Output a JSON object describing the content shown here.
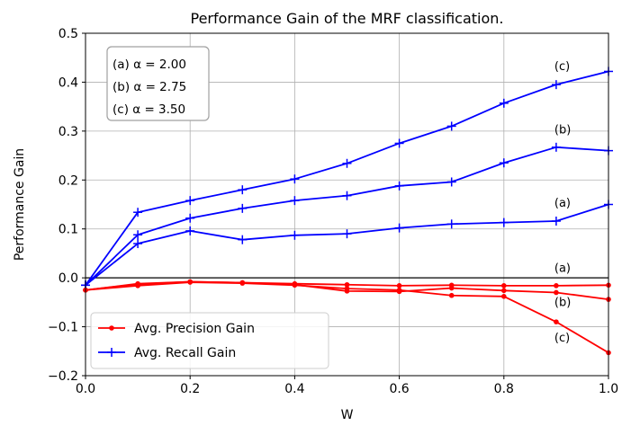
{
  "chart_data": {
    "type": "line",
    "title": "Performance Gain of the MRF classification.",
    "xlabel": "W",
    "ylabel": "Performance Gain",
    "xlim": [
      0.0,
      1.0
    ],
    "ylim": [
      -0.2,
      0.5
    ],
    "xticks": [
      "0.0",
      "0.2",
      "0.4",
      "0.6",
      "0.8",
      "1.0"
    ],
    "yticks": [
      "−0.2",
      "−0.1",
      "0.0",
      "0.1",
      "0.2",
      "0.3",
      "0.4",
      "0.5"
    ],
    "xtick_values": [
      0.0,
      0.2,
      0.4,
      0.6,
      0.8,
      1.0
    ],
    "ytick_values": [
      -0.2,
      -0.1,
      0.0,
      0.1,
      0.2,
      0.3,
      0.4,
      0.5
    ],
    "grid": true,
    "zero_line": 0.0,
    "legend_position": "lower-left",
    "x": [
      0.0,
      0.1,
      0.2,
      0.3,
      0.4,
      0.5,
      0.6,
      0.7,
      0.8,
      0.9,
      1.0
    ],
    "series": [
      {
        "name": "Avg. Recall Gain",
        "case": "(a)",
        "color": "#0000ff",
        "marker": "plus",
        "values": [
          -0.015,
          0.07,
          0.096,
          0.078,
          0.087,
          0.09,
          0.102,
          0.11,
          0.113,
          0.116,
          0.15
        ]
      },
      {
        "name": "Avg. Recall Gain",
        "case": "(b)",
        "color": "#0000ff",
        "marker": "plus",
        "values": [
          -0.015,
          0.088,
          0.122,
          0.142,
          0.158,
          0.168,
          0.188,
          0.196,
          0.235,
          0.267,
          0.26
        ]
      },
      {
        "name": "Avg. Recall Gain",
        "case": "(c)",
        "color": "#0000ff",
        "marker": "plus",
        "values": [
          -0.015,
          0.134,
          0.158,
          0.18,
          0.202,
          0.234,
          0.275,
          0.31,
          0.357,
          0.395,
          0.422
        ]
      },
      {
        "name": "Avg. Precision Gain",
        "case": "(a)",
        "color": "#ff0000",
        "marker": "dot",
        "values": [
          -0.025,
          -0.013,
          -0.008,
          -0.01,
          -0.012,
          -0.014,
          -0.016,
          -0.015,
          -0.016,
          -0.016,
          -0.015
        ]
      },
      {
        "name": "Avg. Precision Gain",
        "case": "(b)",
        "color": "#ff0000",
        "marker": "dot",
        "values": [
          -0.025,
          -0.012,
          -0.008,
          -0.01,
          -0.014,
          -0.027,
          -0.028,
          -0.021,
          -0.026,
          -0.03,
          -0.044
        ]
      },
      {
        "name": "Avg. Precision Gain",
        "case": "(c)",
        "color": "#ff0000",
        "marker": "dot",
        "values": [
          -0.025,
          -0.016,
          -0.009,
          -0.011,
          -0.015,
          -0.022,
          -0.025,
          -0.036,
          -0.038,
          -0.09,
          -0.153
        ]
      }
    ],
    "annotations": [
      {
        "text": "(c)",
        "x": 0.9,
        "y": 0.425
      },
      {
        "text": "(b)",
        "x": 0.9,
        "y": 0.295
      },
      {
        "text": "(a)",
        "x": 0.9,
        "y": 0.145
      },
      {
        "text": "(a)",
        "x": 0.9,
        "y": 0.012
      },
      {
        "text": "(b)",
        "x": 0.9,
        "y": -0.058
      },
      {
        "text": "(c)",
        "x": 0.9,
        "y": -0.13
      }
    ],
    "info_box": {
      "position": "top-left",
      "lines": [
        "(a) α = 2.00",
        "(b) α = 2.75",
        "(c) α = 3.50"
      ]
    },
    "legend": [
      {
        "label": "Avg. Precision Gain",
        "color": "#ff0000",
        "marker": "dot"
      },
      {
        "label": "Avg. Recall Gain",
        "color": "#0000ff",
        "marker": "plus"
      }
    ]
  }
}
